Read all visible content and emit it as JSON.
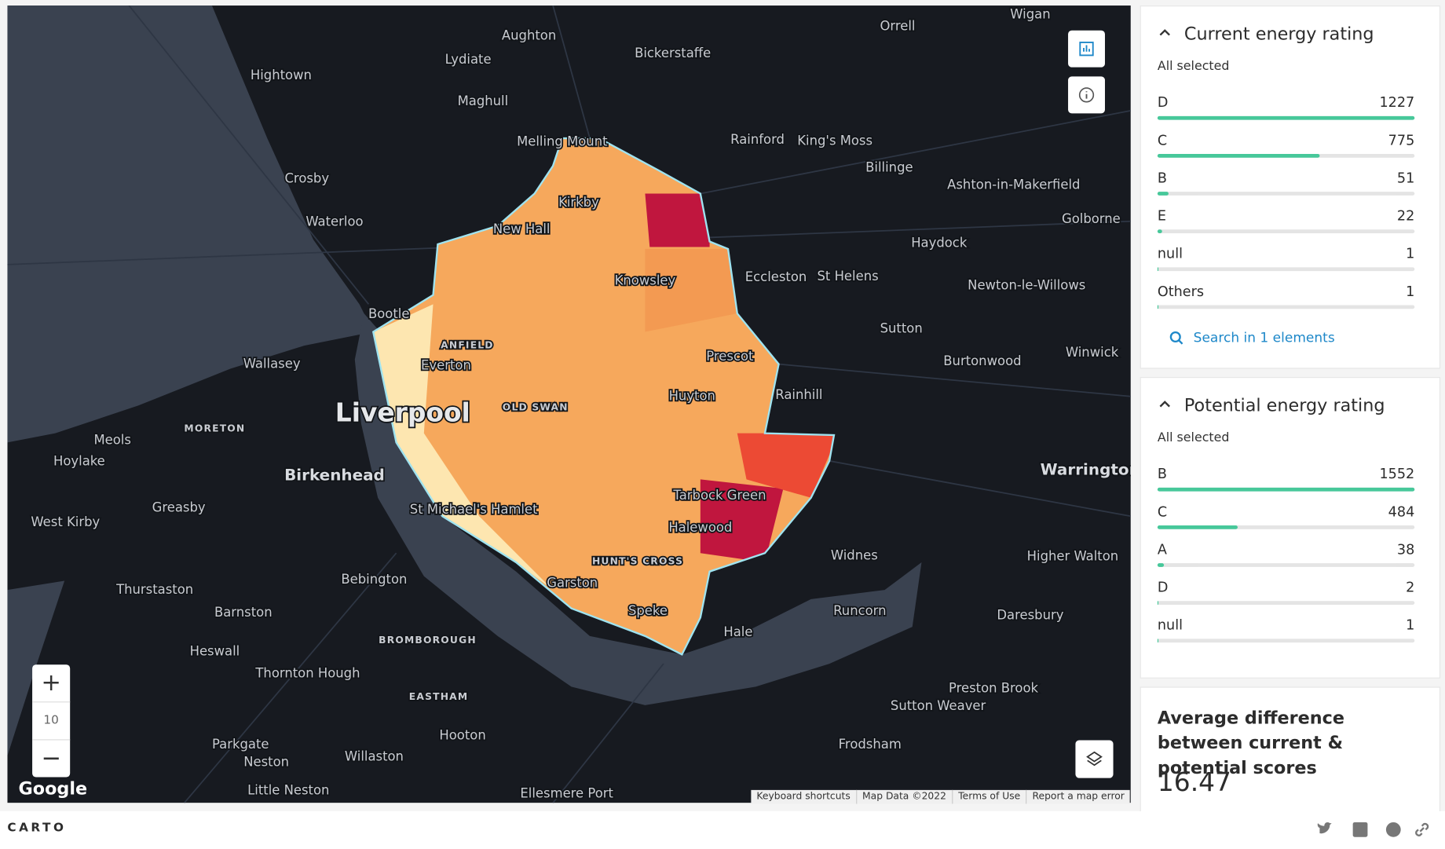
{
  "map": {
    "labels": [
      "Wigan",
      "Orrell",
      "Aughton",
      "Bickerstaffe",
      "Lydiate",
      "Hightown",
      "Maghull",
      "Melling Mount",
      "Rainford",
      "King's Moss",
      "Billinge",
      "Crosby",
      "Ashton-in-Makerfield",
      "Kirkby",
      "Waterloo",
      "New Hall",
      "Golborne",
      "Haydock",
      "Knowsley",
      "Eccleston",
      "St Helens",
      "Newton-le-Willows",
      "Bootle",
      "Sutton",
      "Prescot",
      "Winwick",
      "ANFIELD",
      "Wallasey",
      "Burtonwood",
      "Everton",
      "Rainhill",
      "Huyton",
      "OLD SWAN",
      "Liverpool",
      "MORETON",
      "Meols",
      "Hoylake",
      "Birkenhead",
      "Warrington",
      "Tarbock Green",
      "Greasby",
      "St Michael's Hamlet",
      "West Kirby",
      "Halewood",
      "Widnes",
      "Higher Walton",
      "HUNT'S CROSS",
      "Bebington",
      "Garston",
      "Thurstaston",
      "Barnston",
      "Speke",
      "Runcorn",
      "Daresbury",
      "Hale",
      "BROMBOROUGH",
      "Heswall",
      "Thornton Hough",
      "EASTHAM",
      "Preston Brook",
      "Sutton Weaver",
      "Hooton",
      "Parkgate",
      "Frodsham",
      "Willaston",
      "Neston",
      "Little Neston",
      "Ellesmere Port"
    ],
    "zoom_in": "+",
    "zoom": "10",
    "zoom_out": "−",
    "logo": "Google",
    "attribution": [
      "Keyboard shortcuts",
      "Map Data ©2022",
      "Terms of Use",
      "Report a map error"
    ]
  },
  "widgets": [
    {
      "title": "Current energy rating",
      "status": "All selected",
      "categories": [
        "D",
        "C",
        "B",
        "E",
        "null",
        "Others"
      ],
      "values": [
        1227,
        775,
        51,
        22,
        1,
        1
      ],
      "search": "Search in 1 elements"
    },
    {
      "title": "Potential energy rating",
      "status": "All selected",
      "categories": [
        "B",
        "C",
        "A",
        "D",
        "null"
      ],
      "values": [
        1552,
        484,
        38,
        2,
        1
      ]
    }
  ],
  "formula": {
    "title": "Average difference between current & potential scores",
    "value": 16.47
  },
  "footer": {
    "brand": "CARTO"
  }
}
